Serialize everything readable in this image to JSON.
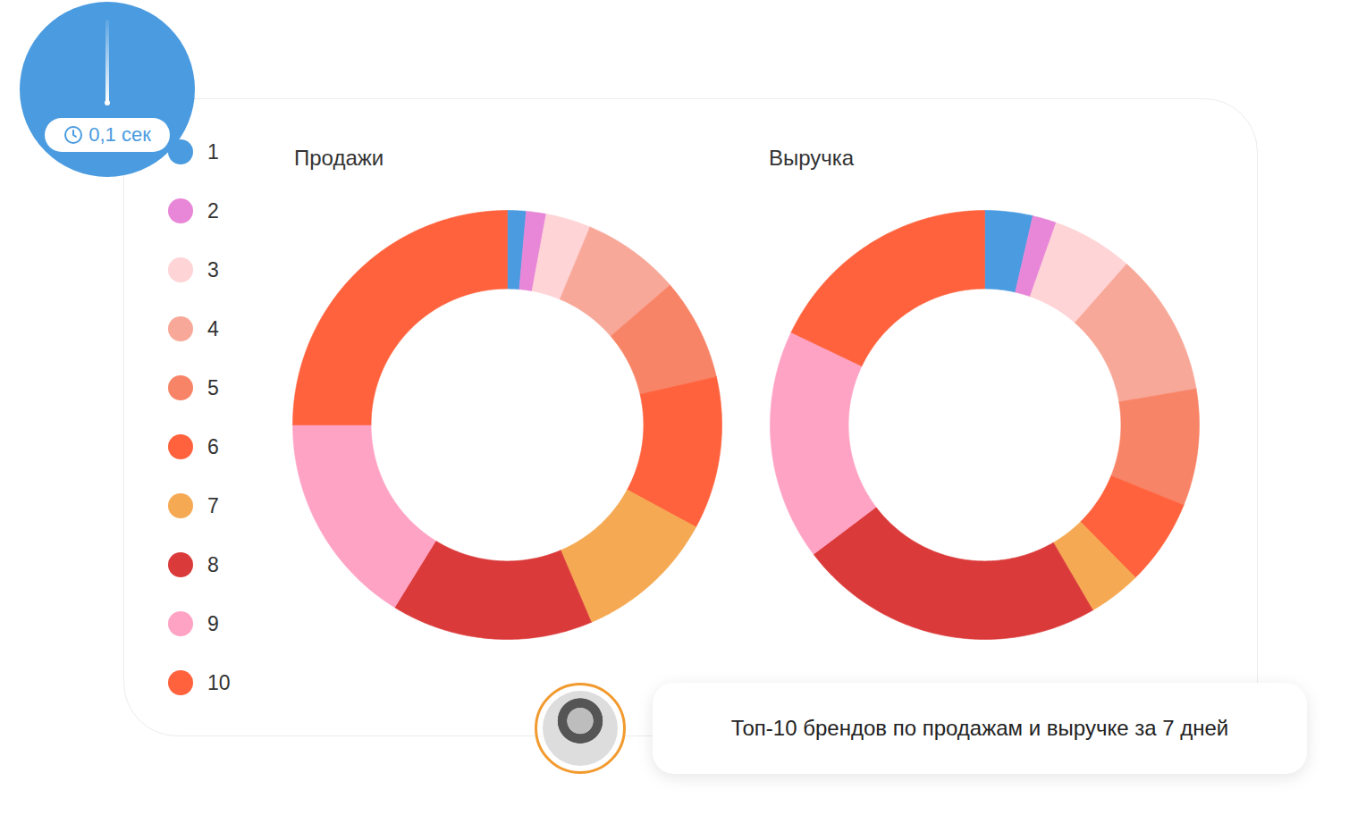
{
  "chart_data": [
    {
      "type": "donut",
      "title": "Продажи",
      "legend": "left",
      "categories": [
        "1",
        "2",
        "3",
        "4",
        "5",
        "6",
        "7",
        "8",
        "9",
        "10"
      ],
      "values": [
        1.4,
        1.5,
        3.4,
        7.4,
        7.7,
        11.5,
        10.7,
        15.2,
        16.2,
        25.0
      ],
      "colors": [
        "#4a9be0",
        "#e887d8",
        "#ffd4d6",
        "#f8a898",
        "#f88468",
        "#ff623c",
        "#f5a953",
        "#db3a3a",
        "#ffa3c4",
        "#ff623c"
      ]
    },
    {
      "type": "donut",
      "title": "Выручка",
      "categories": [
        "1",
        "2",
        "3",
        "4",
        "5",
        "6",
        "7",
        "8",
        "9",
        "10"
      ],
      "values": [
        3.6,
        1.8,
        6.1,
        10.8,
        8.8,
        6.5,
        4.0,
        23.1,
        17.4,
        17.9
      ],
      "colors": [
        "#4a9be0",
        "#e887d8",
        "#ffd4d6",
        "#f8a898",
        "#f88468",
        "#ff623c",
        "#f5a953",
        "#db3a3a",
        "#ffa3c4",
        "#ff623c"
      ]
    }
  ],
  "timer": "0,1 сек",
  "message": "Топ-10 брендов по продажам и выручке за 7 дней"
}
